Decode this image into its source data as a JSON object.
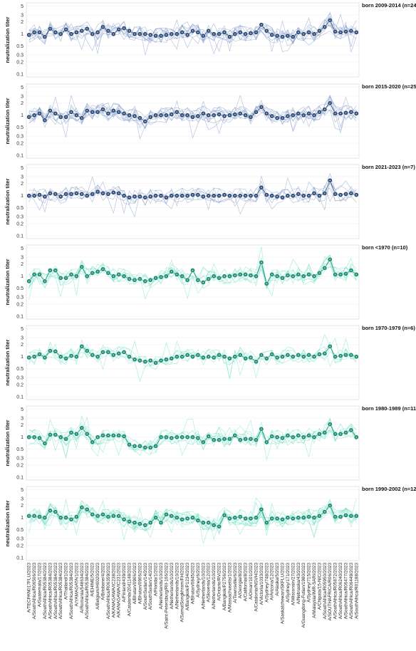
{
  "chart_data": {
    "type": "line",
    "ylabel": "neutralization titer",
    "yscale": "log",
    "yticks": [
      0.1,
      0.2,
      0.3,
      0.5,
      1,
      2,
      3,
      5
    ],
    "ytick_labels": [
      "0.1",
      "0.2",
      "0.3",
      "0.5",
      "1",
      "2",
      "3",
      "5"
    ],
    "ylim": [
      0.085,
      6
    ],
    "x": [
      "A/TECPAN017FLU/2023",
      "A/SouthAfrica/R06506/2023",
      "A/Guatemala/17/2023",
      "A/SouthAfrica/R05384/2023",
      "A/SouthAfrica/R05384/2023",
      "A/SouthAfrica/R05384/2023",
      "A/SouthAfrica/R05384/2023",
      "A/Thailand/1/2023",
      "A/SouthAfrica/R05384/2023",
      "A/YAMAGATA/1/2023",
      "A/Romania/548634/2023",
      "A/SouthAfrica/R05384/2023",
      "A/EHIME/5/2023",
      "A/Belgium/H0020/2023",
      "A/Brisbane/4/2023",
      "A/SouthAfrica/R06359/2023",
      "A/KANAGAWA/IC238/2023",
      "A/KANAGAWA/IC231/2023",
      "A/Finland/439/2023",
      "A/Catalonia/2041148/2023",
      "A/Bhutan/0906/2023",
      "A/Bhutan/0906/2023",
      "A/SouthSudan/14/2023",
      "A/SouthSudan/14/2023",
      "A/Florida/1/2023",
      "A/Netherlands/10/2023",
      "A/Saint-Petersburg/RII-166/2023",
      "A/Netherlands/10/2023",
      "A/Netherlands/10/2023",
      "A/SamutSongkhram/FH/2023",
      "A/Bangkok/P1234/2023",
      "A/Bhutan/0845/2023",
      "A/Sydney/6/2023",
      "A/Netherlands/10/2023",
      "A/Slovenia/12/2023",
      "A/Netherlands/10/2023",
      "A/Ontario/RV/2023",
      "A/Bangkok/P2756/2023",
      "A/Massachusetts/1/2023",
      "A/Townsville/6/2023",
      "A/Georgia/8/2023",
      "A/California/8/2023",
      "A/Oman/101/2023",
      "A/Catalonia/NSVH/2023",
      "A/Victoria/1033/2023",
      "A/Sydney/748/2023",
      "A/Arizona/12/2023",
      "A/Alaska/5/2023",
      "A/Saskatchewan/SKFLU/2023",
      "A/Sydney/171/2023",
      "A/Wisconsin/27/2023",
      "A/Nebraska/43/2023",
      "A/Guangdong-Futian/1980/2023",
      "A/Sydney/715/2023",
      "A/Malaysia/IMR-SARI/2023",
      "A/Chipata/15-NIC/2023",
      "A/SouthAfrica/R05950/2023",
      "A/SOUTHAFRICA/R06/2023",
      "A/SouthAfrica/R05872/2023",
      "A/SouthAfrica/R06240/2023",
      "A/SouthAfrica/R06477/2023",
      "A/SouthAfrica/R06449/2023",
      "A/SouthAfrica/R01188/2023"
    ],
    "panels": [
      {
        "title": "born 2009-2014 (n=24)",
        "color": "#2c4a75",
        "line_color": "#7f97c9",
        "individual_lines": 10,
        "values": [
          0.95,
          1.1,
          1.1,
          0.85,
          1.35,
          1.1,
          1.0,
          1.3,
          1.0,
          1.1,
          1.2,
          1.35,
          1.0,
          1.1,
          1.5,
          1.2,
          1.0,
          1.3,
          1.4,
          1.2,
          1.0,
          1.0,
          1.0,
          0.95,
          0.9,
          0.9,
          0.95,
          1.0,
          1.0,
          1.1,
          0.95,
          1.2,
          1.1,
          0.9,
          1.2,
          1.0,
          1.0,
          1.1,
          0.85,
          1.0,
          1.1,
          1.0,
          1.05,
          1.1,
          1.7,
          1.2,
          0.95,
          0.9,
          0.85,
          0.9,
          0.85,
          1.1,
          1.0,
          1.1,
          1.0,
          1.2,
          1.5,
          2.2,
          1.15,
          1.1,
          1.15,
          1.2,
          1.1
        ]
      },
      {
        "title": "born 2015-2020 (n=25)",
        "color": "#2c4a75",
        "line_color": "#7f97c9",
        "individual_lines": 10,
        "values": [
          0.9,
          1.0,
          1.1,
          0.75,
          1.3,
          1.1,
          0.9,
          0.9,
          1.2,
          1.0,
          0.85,
          1.3,
          1.2,
          1.2,
          1.4,
          1.1,
          1.3,
          1.2,
          1.1,
          1.0,
          0.95,
          0.85,
          0.7,
          0.9,
          1.0,
          1.0,
          1.0,
          1.05,
          1.2,
          1.0,
          1.0,
          0.9,
          0.95,
          1.1,
          1.0,
          1.0,
          1.05,
          0.95,
          1.0,
          1.05,
          1.1,
          1.0,
          0.9,
          1.2,
          1.6,
          1.1,
          0.95,
          0.85,
          0.85,
          0.95,
          1.0,
          1.1,
          1.0,
          1.1,
          1.0,
          1.2,
          1.4,
          2.0,
          1.1,
          1.1,
          1.15,
          1.2,
          1.1
        ]
      },
      {
        "title": "born 2021-2023 (n=7)",
        "color": "#2c4a75",
        "line_color": "#7f97c9",
        "individual_lines": 6,
        "values": [
          1.0,
          1.0,
          1.05,
          0.95,
          1.15,
          1.1,
          0.95,
          1.1,
          1.1,
          1.15,
          1.1,
          1.0,
          1.1,
          1.25,
          1.15,
          1.1,
          1.2,
          1.15,
          1.0,
          0.9,
          0.95,
          0.95,
          0.9,
          0.95,
          1.0,
          1.0,
          0.9,
          1.0,
          1.0,
          1.0,
          1.0,
          1.05,
          1.05,
          0.95,
          1.0,
          1.0,
          1.0,
          1.05,
          1.0,
          1.0,
          1.0,
          1.0,
          1.0,
          1.0,
          1.6,
          1.05,
          1.0,
          0.95,
          0.9,
          1.0,
          1.0,
          1.1,
          1.0,
          1.0,
          1.15,
          1.0,
          1.15,
          2.4,
          1.1,
          1.05,
          1.1,
          1.15,
          1.05
        ]
      },
      {
        "title": "born <1970 (n=10)",
        "color": "#1a8c73",
        "line_color": "#6fe0c3",
        "individual_lines": 8,
        "values": [
          0.75,
          1.1,
          1.1,
          0.75,
          1.4,
          1.4,
          0.9,
          0.9,
          1.1,
          1.0,
          1.7,
          1.0,
          1.2,
          1.3,
          1.5,
          1.2,
          1.0,
          1.1,
          1.0,
          0.85,
          0.8,
          0.85,
          0.75,
          0.8,
          0.9,
          0.95,
          1.0,
          1.3,
          1.1,
          1.0,
          0.8,
          1.4,
          0.8,
          0.7,
          0.85,
          1.0,
          0.9,
          1.0,
          1.0,
          1.05,
          1.1,
          1.1,
          1.05,
          1.0,
          2.2,
          0.65,
          1.1,
          1.0,
          0.9,
          1.05,
          1.0,
          1.1,
          1.0,
          1.1,
          1.0,
          1.2,
          1.6,
          2.6,
          1.1,
          1.1,
          1.15,
          1.4,
          1.1
        ]
      },
      {
        "title": "born 1970-1979 (n=6)",
        "color": "#1a8c73",
        "line_color": "#6fe0c3",
        "individual_lines": 6,
        "values": [
          0.95,
          1.0,
          1.15,
          0.95,
          1.4,
          1.35,
          1.0,
          0.9,
          1.05,
          1.0,
          1.8,
          1.4,
          1.1,
          1.0,
          1.3,
          1.3,
          1.1,
          1.2,
          1.3,
          1.0,
          0.85,
          0.8,
          0.75,
          0.8,
          0.7,
          0.8,
          0.85,
          0.9,
          1.0,
          1.0,
          1.1,
          1.0,
          1.1,
          0.95,
          1.0,
          0.95,
          1.1,
          1.0,
          0.9,
          1.0,
          1.1,
          0.9,
          0.95,
          0.75,
          1.1,
          0.9,
          1.15,
          0.95,
          1.0,
          1.1,
          1.0,
          1.1,
          1.0,
          1.1,
          1.0,
          1.15,
          1.2,
          1.8,
          1.0,
          1.05,
          1.1,
          1.1,
          1.0
        ]
      },
      {
        "title": "born 1980-1989 (n=11)",
        "color": "#1a8c73",
        "line_color": "#6fe0c3",
        "individual_lines": 8,
        "values": [
          1.0,
          1.0,
          0.95,
          0.7,
          1.15,
          1.15,
          1.0,
          0.9,
          1.3,
          1.2,
          1.7,
          1.2,
          0.75,
          1.0,
          1.1,
          1.1,
          1.1,
          1.1,
          1.05,
          0.65,
          0.6,
          0.6,
          0.55,
          0.55,
          0.6,
          1.0,
          1.0,
          0.95,
          1.0,
          1.0,
          1.0,
          1.0,
          0.95,
          0.75,
          1.05,
          0.85,
          0.85,
          0.9,
          0.9,
          1.1,
          0.85,
          0.9,
          0.9,
          0.85,
          1.6,
          0.75,
          1.05,
          1.0,
          0.95,
          1.1,
          1.0,
          1.1,
          1.0,
          1.1,
          1.0,
          1.2,
          1.3,
          2.1,
          1.2,
          1.2,
          1.3,
          1.5,
          1.0
        ]
      },
      {
        "title": "born 1990-2002 (n=12)",
        "color": "#1a8c73",
        "line_color": "#6fe0c3",
        "individual_lines": 10,
        "values": [
          1.1,
          1.1,
          1.05,
          1.0,
          1.5,
          1.4,
          1.0,
          1.0,
          0.9,
          1.05,
          1.8,
          1.6,
          1.2,
          1.1,
          1.2,
          1.05,
          1.1,
          1.1,
          0.9,
          0.8,
          0.75,
          0.7,
          0.65,
          0.75,
          1.0,
          0.75,
          1.2,
          1.1,
          1.0,
          0.9,
          0.95,
          1.0,
          0.85,
          0.75,
          0.75,
          0.65,
          0.6,
          1.15,
          0.95,
          1.0,
          1.05,
          0.95,
          0.95,
          1.0,
          1.6,
          0.75,
          0.95,
          0.95,
          0.9,
          1.0,
          0.95,
          1.0,
          1.0,
          1.05,
          1.0,
          1.1,
          1.4,
          2.0,
          1.05,
          1.05,
          1.15,
          1.1,
          1.1
        ]
      }
    ]
  }
}
